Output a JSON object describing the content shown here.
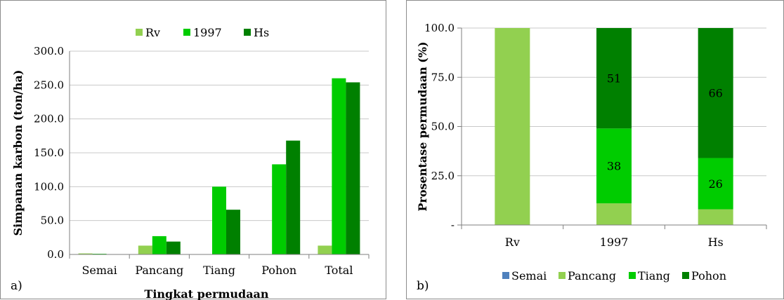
{
  "chart_data": [
    {
      "type": "bar",
      "panel_label": "a)",
      "xlabel": "Tingkat permudaan",
      "ylabel": "Simpanan karbon (ton/ha)",
      "ylim": [
        0,
        300
      ],
      "yticks": [
        "0.0",
        "50.0",
        "100.0",
        "150.0",
        "200.0",
        "250.0",
        "300.0"
      ],
      "ytick_values": [
        0,
        50,
        100,
        150,
        200,
        250,
        300
      ],
      "grid": true,
      "legend_position": "top",
      "categories": [
        "Semai",
        "Pancang",
        "Tiang",
        "Pohon",
        "Total"
      ],
      "series": [
        {
          "name": "Rv",
          "color": "#92d050",
          "values": [
            1.5,
            13,
            0,
            0,
            13
          ]
        },
        {
          "name": "1997",
          "color": "#00cc00",
          "values": [
            1,
            27,
            100,
            133,
            260
          ]
        },
        {
          "name": "Hs",
          "color": "#008000",
          "values": [
            0.5,
            19,
            66,
            168,
            254
          ]
        }
      ]
    },
    {
      "type": "bar",
      "stacked": true,
      "panel_label": "b)",
      "xlabel": "",
      "ylabel": "Prosentase permudaan (%)",
      "ylim": [
        0,
        100
      ],
      "yticks": [
        "-",
        "25.0",
        "50.0",
        "75.0",
        "100.0"
      ],
      "ytick_values": [
        0,
        25,
        50,
        75,
        100
      ],
      "grid": true,
      "legend_position": "bottom",
      "categories": [
        "Rv",
        "1997",
        "Hs"
      ],
      "series": [
        {
          "name": "Semai",
          "color": "#4f81bd",
          "values": [
            0,
            0,
            0
          ],
          "labels": [
            "",
            "",
            ""
          ]
        },
        {
          "name": "Pancang",
          "color": "#92d050",
          "values": [
            100,
            11,
            8
          ],
          "labels": [
            "",
            "",
            ""
          ]
        },
        {
          "name": "Tiang",
          "color": "#00cc00",
          "values": [
            0,
            38,
            26
          ],
          "labels": [
            "",
            "38",
            "26"
          ]
        },
        {
          "name": "Pohon",
          "color": "#008000",
          "values": [
            0,
            51,
            66
          ],
          "labels": [
            "",
            "51",
            "66"
          ]
        }
      ]
    }
  ]
}
